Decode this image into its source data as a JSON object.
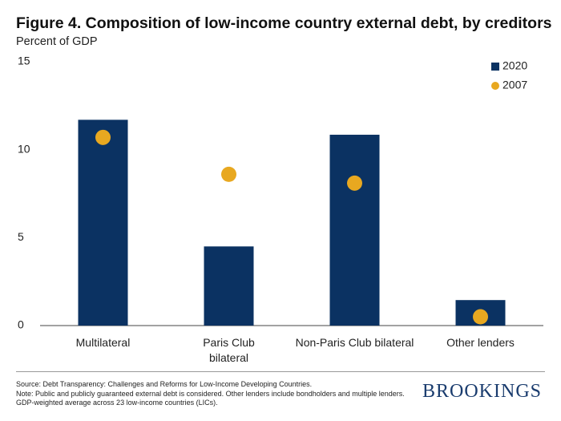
{
  "chart_data": {
    "type": "bar",
    "title": "Figure 4. Composition of low-income country external debt, by creditors",
    "subtitle": "Percent of GDP",
    "categories": [
      "Multilateral",
      "Paris Club bilateral",
      "Non-Paris Club bilateral",
      "Other lenders"
    ],
    "series": [
      {
        "name": "2020",
        "type": "bar",
        "color": "#0b3262",
        "values": [
          11.7,
          4.5,
          10.85,
          1.45
        ]
      },
      {
        "name": "2007",
        "type": "scatter",
        "color": "#e8a820",
        "values": [
          10.7,
          8.6,
          8.1,
          0.5
        ]
      }
    ],
    "ylim": [
      0,
      15
    ],
    "yticks": [
      0,
      5,
      10,
      15
    ],
    "grid": false,
    "legend": "top-right",
    "source": "Source: Debt Transparency: Challenges and Reforms for Low-Income Developing Countries.",
    "note": "Note: Public and publicly guaranteed external debt is considered. Other lenders include bondholders and multiple lenders. GDP-weighted average across 23 low-income countries (LICs).",
    "logo": "BROOKINGS"
  }
}
